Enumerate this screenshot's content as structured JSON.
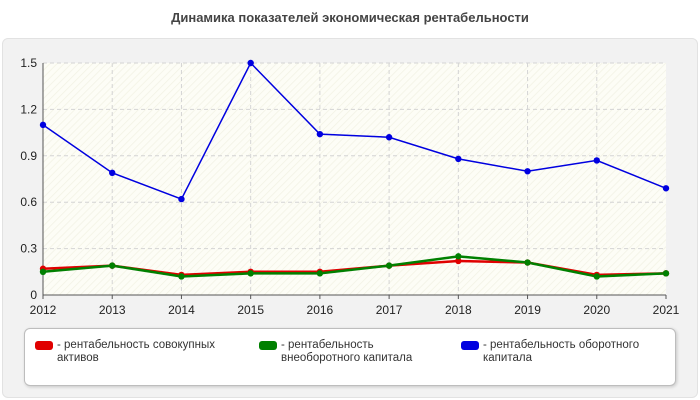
{
  "chart_data": {
    "type": "line",
    "title": "Динамика показателей экономическая рентабельности",
    "x": [
      "2012",
      "2013",
      "2014",
      "2015",
      "2016",
      "2017",
      "2018",
      "2019",
      "2020",
      "2021"
    ],
    "ylim": [
      0,
      1.5
    ],
    "yticks": [
      "0",
      "0.3",
      "0.6",
      "0.9",
      "1.2",
      "1.5"
    ],
    "grid": true,
    "legend_position": "bottom",
    "series": [
      {
        "name": "- рентабельность совокупных активов",
        "color": "#e00000",
        "values": [
          0.17,
          0.19,
          0.13,
          0.15,
          0.15,
          0.19,
          0.22,
          0.21,
          0.13,
          0.14
        ]
      },
      {
        "name": "- рентабельность внеоборотного капитала",
        "color": "#008000",
        "values": [
          0.15,
          0.19,
          0.12,
          0.14,
          0.14,
          0.19,
          0.25,
          0.21,
          0.12,
          0.14
        ]
      },
      {
        "name": "- рентабельность оборотного капитала",
        "color": "#0000e0",
        "values": [
          1.1,
          0.79,
          0.62,
          1.5,
          1.04,
          1.02,
          0.88,
          0.8,
          0.87,
          0.69
        ]
      }
    ]
  }
}
